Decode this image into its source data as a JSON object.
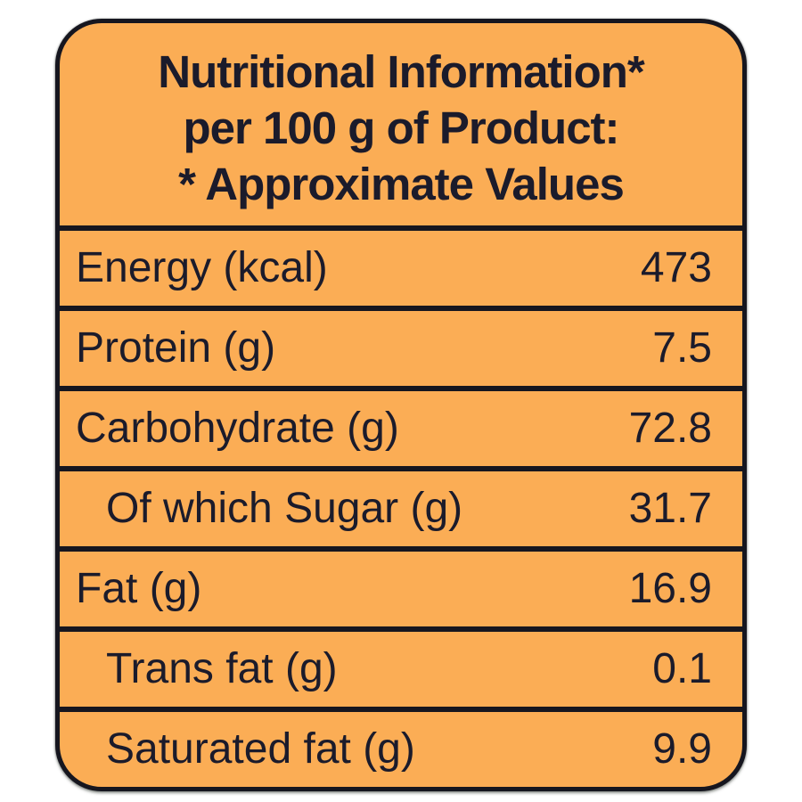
{
  "header": {
    "line1": "Nutritional Information*",
    "line2": "per 100 g of Product:",
    "line3": "* Approximate Values"
  },
  "rows": [
    {
      "label": "Energy (kcal)",
      "value": "473",
      "indent": false
    },
    {
      "label": "Protein (g)",
      "value": "7.5",
      "indent": false
    },
    {
      "label": "Carbohydrate (g)",
      "value": "72.8",
      "indent": false
    },
    {
      "label": "Of which Sugar (g)",
      "value": "31.7",
      "indent": true
    },
    {
      "label": "Fat (g)",
      "value": "16.9",
      "indent": false
    },
    {
      "label": "Trans fat (g)",
      "value": "0.1",
      "indent": true
    },
    {
      "label": "Saturated fat (g)",
      "value": "9.9",
      "indent": true
    }
  ],
  "colors": {
    "card_background": "#FBAD55",
    "text": "#1B1B2B",
    "border": "#16161F",
    "page_background": "#FFFFFF"
  }
}
